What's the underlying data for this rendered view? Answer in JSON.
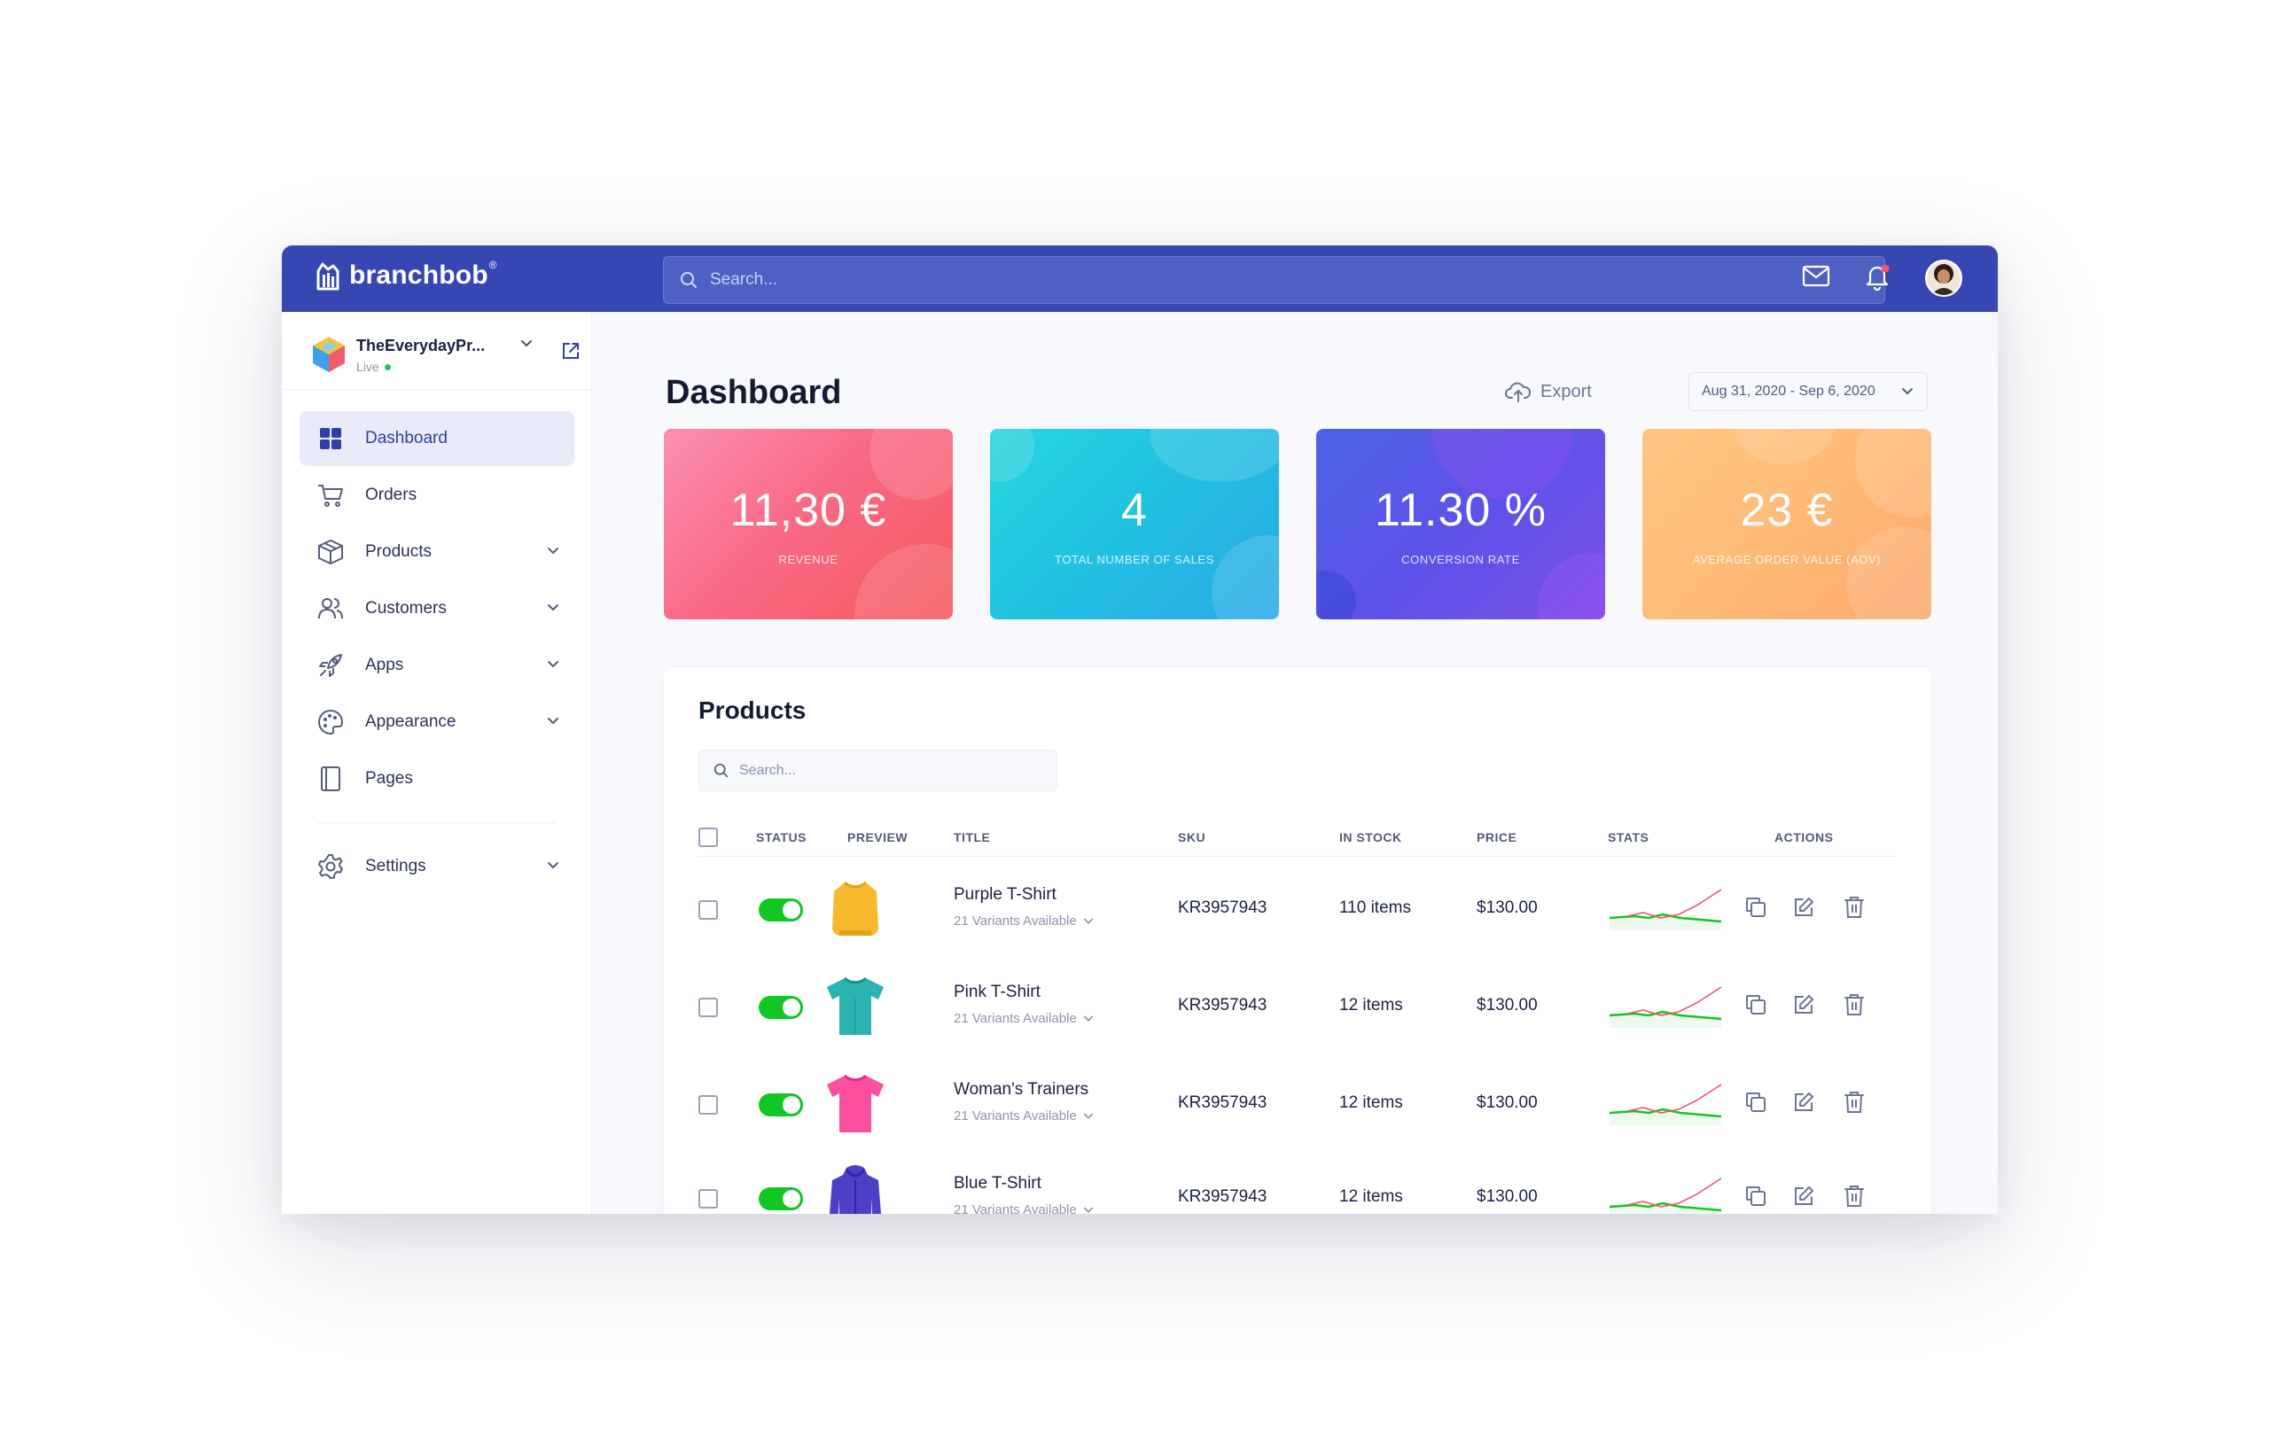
{
  "brand": {
    "name": "branchbob",
    "mark": "®"
  },
  "topbar": {
    "search_placeholder": "Search..."
  },
  "store": {
    "name": "TheEverydayPr...",
    "status": "Live"
  },
  "sidebar": {
    "items": [
      {
        "label": "Dashboard",
        "icon": "dashboard-grid-icon",
        "active": true
      },
      {
        "label": "Orders",
        "icon": "cart-icon"
      },
      {
        "label": "Products",
        "icon": "box-icon"
      },
      {
        "label": "Customers",
        "icon": "users-icon"
      },
      {
        "label": "Apps",
        "icon": "rocket-icon"
      },
      {
        "label": "Appearance",
        "icon": "palette-icon"
      },
      {
        "label": "Pages",
        "icon": "pages-icon"
      },
      {
        "label": "Settings",
        "icon": "gear-icon"
      }
    ]
  },
  "header": {
    "title": "Dashboard",
    "export_label": "Export",
    "date_range": "Aug 31, 2020 - Sep 6, 2020"
  },
  "kpis": [
    {
      "value": "11,30 €",
      "label": "REVENUE",
      "color": "#f96a86"
    },
    {
      "value": "4",
      "label": "TOTAL NUMBER OF SALES",
      "color": "#21c2e0"
    },
    {
      "value": "11.30 %",
      "label": "CONVERSION RATE",
      "color": "#5d52e8"
    },
    {
      "value": "23 €",
      "label": "AVERAGE ORDER VALUE (AOV)",
      "color": "#ffbb78"
    }
  ],
  "products": {
    "title": "Products",
    "search_placeholder": "Search...",
    "columns": [
      "STATUS",
      "PREVIEW",
      "TITLE",
      "SKU",
      "IN STOCK",
      "PRICE",
      "STATS",
      "ACTIONS"
    ],
    "rows": [
      {
        "title": "Purple T-Shirt",
        "variants": "21 Variants Available",
        "sku": "KR3957943",
        "stock": "110  items",
        "price": "$130.00",
        "status_on": true,
        "preview": "yellow-sweater"
      },
      {
        "title": "Pink T-Shirt",
        "variants": "21 Variants Available",
        "sku": "KR3957943",
        "stock": "12 items",
        "price": "$130.00",
        "status_on": true,
        "preview": "teal-tshirt"
      },
      {
        "title": "Woman's Trainers",
        "variants": "21 Variants Available",
        "sku": "KR3957943",
        "stock": "12 items",
        "price": "$130.00",
        "status_on": true,
        "preview": "pink-tshirt"
      },
      {
        "title": "Blue T-Shirt",
        "variants": "21 Variants Available",
        "sku": "KR3957943",
        "stock": "12 items",
        "price": "$130.00",
        "status_on": true,
        "preview": "blue-hoodie"
      }
    ]
  },
  "colors": {
    "topbar": "#3646b3",
    "accent": "#2f3ea8",
    "toggle_on": "#12c623",
    "spark_green": "#12c623",
    "spark_red": "#f2556b"
  }
}
